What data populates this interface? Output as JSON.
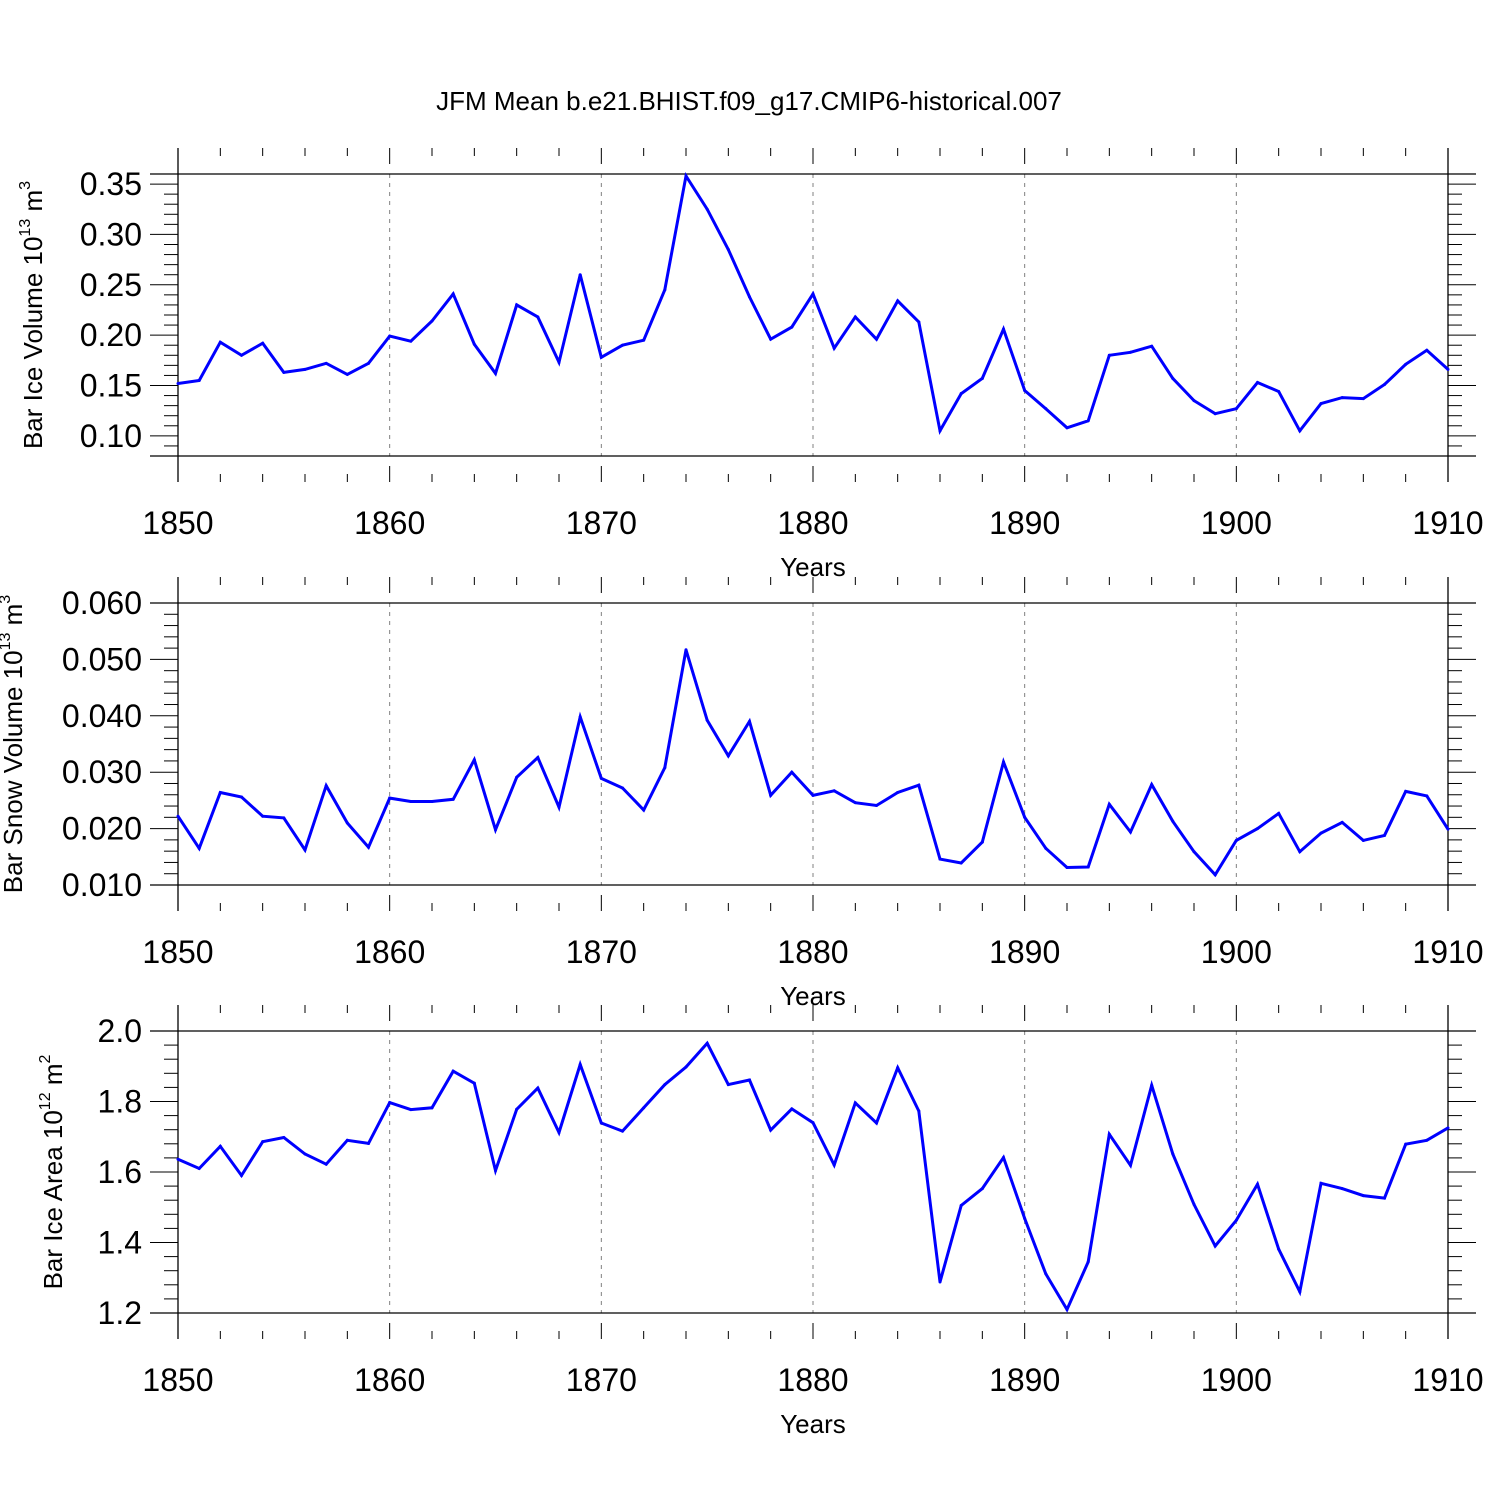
{
  "title": "JFM Mean b.e21.BHIST.f09_g17.CMIP6-historical.007",
  "colors": {
    "line": "#0000ff",
    "axis": "#000000",
    "grid": "#808080"
  },
  "chart_data": [
    {
      "type": "line",
      "ylabel_main": "Bar Ice Volume 10",
      "ylabel_exp": "13",
      "ylabel_unit": " m",
      "ylabel_unit_exp": "3",
      "xlabel": "Years",
      "xlim": [
        1850,
        1910
      ],
      "ylim": [
        0.08,
        0.36
      ],
      "xticks": [
        1850,
        1860,
        1870,
        1880,
        1890,
        1900,
        1910
      ],
      "xtick_labels": [
        "1850",
        "1860",
        "1870",
        "1880",
        "1890",
        "1900",
        "1910"
      ],
      "yticks": [
        0.1,
        0.15,
        0.2,
        0.25,
        0.3,
        0.35
      ],
      "ytick_labels": [
        "0.10",
        "0.15",
        "0.20",
        "0.25",
        "0.30",
        "0.35"
      ],
      "grid": "x-dashed",
      "x": [
        1850,
        1851,
        1852,
        1853,
        1854,
        1855,
        1856,
        1857,
        1858,
        1859,
        1860,
        1861,
        1862,
        1863,
        1864,
        1865,
        1866,
        1867,
        1868,
        1869,
        1870,
        1871,
        1872,
        1873,
        1874,
        1875,
        1876,
        1877,
        1878,
        1879,
        1880,
        1881,
        1882,
        1883,
        1884,
        1885,
        1886,
        1887,
        1888,
        1889,
        1890,
        1891,
        1892,
        1893,
        1894,
        1895,
        1896,
        1897,
        1898,
        1899,
        1900,
        1901,
        1902,
        1903,
        1904,
        1905,
        1906,
        1907,
        1908,
        1909,
        1910
      ],
      "y": [
        0.152,
        0.155,
        0.193,
        0.18,
        0.192,
        0.163,
        0.166,
        0.172,
        0.161,
        0.172,
        0.199,
        0.194,
        0.214,
        0.241,
        0.191,
        0.162,
        0.23,
        0.218,
        0.173,
        0.26,
        0.178,
        0.19,
        0.195,
        0.245,
        0.358,
        0.325,
        0.285,
        0.238,
        0.196,
        0.208,
        0.241,
        0.187,
        0.218,
        0.196,
        0.234,
        0.213,
        0.105,
        0.142,
        0.157,
        0.206,
        0.145,
        0.127,
        0.108,
        0.115,
        0.18,
        0.183,
        0.189,
        0.157,
        0.135,
        0.122,
        0.127,
        0.153,
        0.144,
        0.105,
        0.132,
        0.138,
        0.137,
        0.151,
        0.171,
        0.185,
        0.166
      ]
    },
    {
      "type": "line",
      "ylabel_main": "Bar Snow Volume 10",
      "ylabel_exp": "13",
      "ylabel_unit": " m",
      "ylabel_unit_exp": "3",
      "xlabel": "Years",
      "xlim": [
        1850,
        1910
      ],
      "ylim": [
        0.01,
        0.06
      ],
      "xticks": [
        1850,
        1860,
        1870,
        1880,
        1890,
        1900,
        1910
      ],
      "xtick_labels": [
        "1850",
        "1860",
        "1870",
        "1880",
        "1890",
        "1900",
        "1910"
      ],
      "yticks": [
        0.01,
        0.02,
        0.03,
        0.04,
        0.05,
        0.06
      ],
      "ytick_labels": [
        "0.010",
        "0.020",
        "0.030",
        "0.040",
        "0.050",
        "0.060"
      ],
      "grid": "x-dashed",
      "x": [
        1850,
        1851,
        1852,
        1853,
        1854,
        1855,
        1856,
        1857,
        1858,
        1859,
        1860,
        1861,
        1862,
        1863,
        1864,
        1865,
        1866,
        1867,
        1868,
        1869,
        1870,
        1871,
        1872,
        1873,
        1874,
        1875,
        1876,
        1877,
        1878,
        1879,
        1880,
        1881,
        1882,
        1883,
        1884,
        1885,
        1886,
        1887,
        1888,
        1889,
        1890,
        1891,
        1892,
        1893,
        1894,
        1895,
        1896,
        1897,
        1898,
        1899,
        1900,
        1901,
        1902,
        1903,
        1904,
        1905,
        1906,
        1907,
        1908,
        1909,
        1910
      ],
      "y": [
        0.0222,
        0.0165,
        0.0264,
        0.0256,
        0.0222,
        0.0219,
        0.0162,
        0.0276,
        0.021,
        0.0167,
        0.0254,
        0.0248,
        0.0248,
        0.0252,
        0.0322,
        0.0198,
        0.0291,
        0.0326,
        0.0238,
        0.0398,
        0.0289,
        0.0272,
        0.0233,
        0.0308,
        0.0517,
        0.0392,
        0.0329,
        0.039,
        0.0259,
        0.03,
        0.0259,
        0.0267,
        0.0246,
        0.0241,
        0.0264,
        0.0277,
        0.0146,
        0.0139,
        0.0176,
        0.0318,
        0.022,
        0.0165,
        0.0131,
        0.0132,
        0.0243,
        0.0194,
        0.0278,
        0.0213,
        0.0159,
        0.0118,
        0.0179,
        0.02,
        0.0227,
        0.0159,
        0.0192,
        0.0211,
        0.0179,
        0.0188,
        0.0266,
        0.0258,
        0.0199
      ]
    },
    {
      "type": "line",
      "ylabel_main": "Bar Ice Area 10",
      "ylabel_exp": "12",
      "ylabel_unit": " m",
      "ylabel_unit_exp": "2",
      "xlabel": "Years",
      "xlim": [
        1850,
        1910
      ],
      "ylim": [
        1.2,
        2.0
      ],
      "xticks": [
        1850,
        1860,
        1870,
        1880,
        1890,
        1900,
        1910
      ],
      "xtick_labels": [
        "1850",
        "1860",
        "1870",
        "1880",
        "1890",
        "1900",
        "1910"
      ],
      "yticks": [
        1.2,
        1.4,
        1.6,
        1.8,
        2.0
      ],
      "ytick_labels": [
        "1.2",
        "1.4",
        "1.6",
        "1.8",
        "2.0"
      ],
      "grid": "x-dashed",
      "x": [
        1850,
        1851,
        1852,
        1853,
        1854,
        1855,
        1856,
        1857,
        1858,
        1859,
        1860,
        1861,
        1862,
        1863,
        1864,
        1865,
        1866,
        1867,
        1868,
        1869,
        1870,
        1871,
        1872,
        1873,
        1874,
        1875,
        1876,
        1877,
        1878,
        1879,
        1880,
        1881,
        1882,
        1883,
        1884,
        1885,
        1886,
        1887,
        1888,
        1889,
        1890,
        1891,
        1892,
        1893,
        1894,
        1895,
        1896,
        1897,
        1898,
        1899,
        1900,
        1901,
        1902,
        1903,
        1904,
        1905,
        1906,
        1907,
        1908,
        1909,
        1910
      ],
      "y": [
        1.636,
        1.61,
        1.673,
        1.59,
        1.686,
        1.698,
        1.651,
        1.622,
        1.69,
        1.681,
        1.797,
        1.777,
        1.782,
        1.886,
        1.852,
        1.604,
        1.778,
        1.838,
        1.712,
        1.905,
        1.739,
        1.716,
        1.782,
        1.848,
        1.898,
        1.965,
        1.848,
        1.861,
        1.719,
        1.779,
        1.74,
        1.62,
        1.796,
        1.739,
        1.896,
        1.773,
        1.288,
        1.505,
        1.553,
        1.641,
        1.468,
        1.311,
        1.21,
        1.345,
        1.707,
        1.619,
        1.846,
        1.651,
        1.508,
        1.39,
        1.463,
        1.565,
        1.381,
        1.26,
        1.568,
        1.553,
        1.533,
        1.526,
        1.679,
        1.69,
        1.725
      ]
    }
  ]
}
